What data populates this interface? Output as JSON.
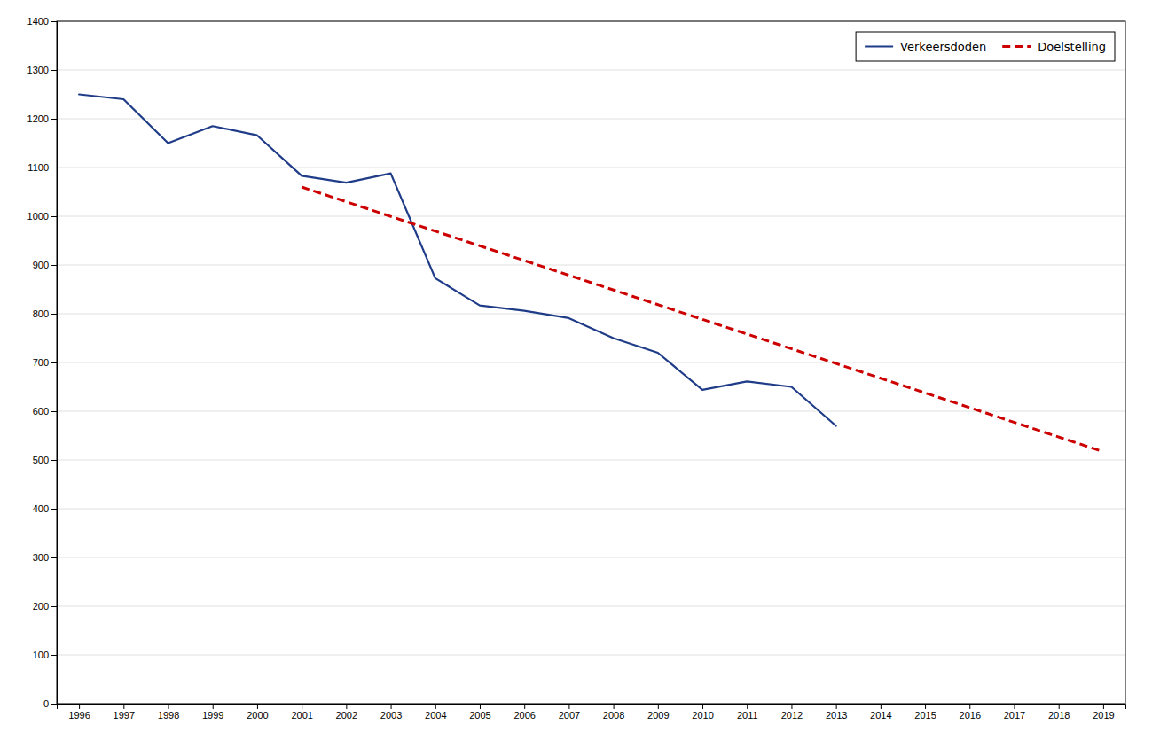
{
  "chart_data": {
    "type": "line",
    "series": [
      {
        "name": "Verkeersdoden",
        "color": "#1F3C88",
        "line_style": "solid",
        "x": [
          1996,
          1997,
          1998,
          1999,
          2000,
          2001,
          2002,
          2003,
          2004,
          2005,
          2006,
          2007,
          2008,
          2009,
          2010,
          2011,
          2012,
          2013
        ],
        "values": [
          1250,
          1240,
          1150,
          1185,
          1166,
          1083,
          1069,
          1088,
          873,
          817,
          806,
          791,
          750,
          720,
          644,
          661,
          650,
          570
        ]
      },
      {
        "name": "Doelstelling",
        "color": "#CC0000",
        "line_style": "dashed",
        "x": [
          2001,
          2019
        ],
        "values": [
          1060,
          517
        ]
      }
    ],
    "xlim": [
      1995.5,
      2019.5
    ],
    "xticks": [
      1996,
      1997,
      1998,
      1999,
      2000,
      2001,
      2002,
      2003,
      2004,
      2005,
      2006,
      2007,
      2008,
      2009,
      2010,
      2011,
      2012,
      2013,
      2014,
      2015,
      2016,
      2017,
      2018,
      2019
    ],
    "ylim": [
      0,
      1400
    ],
    "yticks": [
      0,
      100,
      200,
      300,
      400,
      500,
      600,
      700,
      800,
      900,
      1000,
      1100,
      1200,
      1300,
      1400
    ],
    "grid": "y",
    "legend": "upper right"
  }
}
